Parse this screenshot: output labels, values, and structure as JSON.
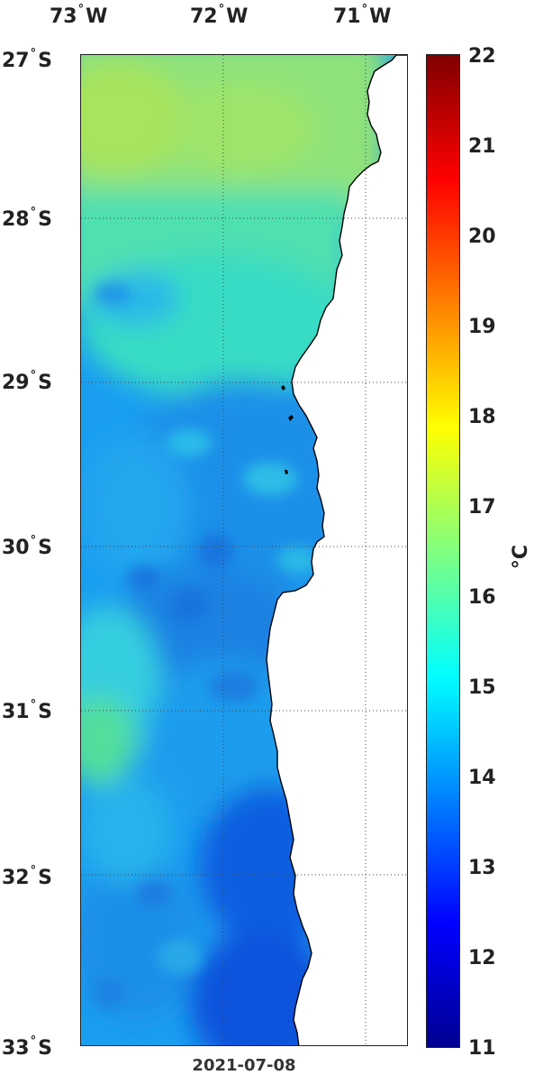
{
  "map": {
    "date_label": "2021-07-08",
    "lon_labels": [
      {
        "deg": "73",
        "hemi": "W"
      },
      {
        "deg": "72",
        "hemi": "W"
      },
      {
        "deg": "71",
        "hemi": "W"
      }
    ],
    "lat_labels": [
      {
        "deg": "27",
        "hemi": "S"
      },
      {
        "deg": "28",
        "hemi": "S"
      },
      {
        "deg": "29",
        "hemi": "S"
      },
      {
        "deg": "30",
        "hemi": "S"
      },
      {
        "deg": "31",
        "hemi": "S"
      },
      {
        "deg": "32",
        "hemi": "S"
      },
      {
        "deg": "33",
        "hemi": "S"
      }
    ],
    "degree_symbol": "°",
    "colorbar": {
      "min": 11,
      "max": 22,
      "ticks": [
        "22",
        "21",
        "20",
        "19",
        "18",
        "17",
        "16",
        "15",
        "14",
        "13",
        "12",
        "11"
      ],
      "unit": "°C",
      "colormap": "jet"
    },
    "colors": {
      "land": "#ffffff",
      "coastline": "#000000",
      "grid": "#444444"
    }
  }
}
